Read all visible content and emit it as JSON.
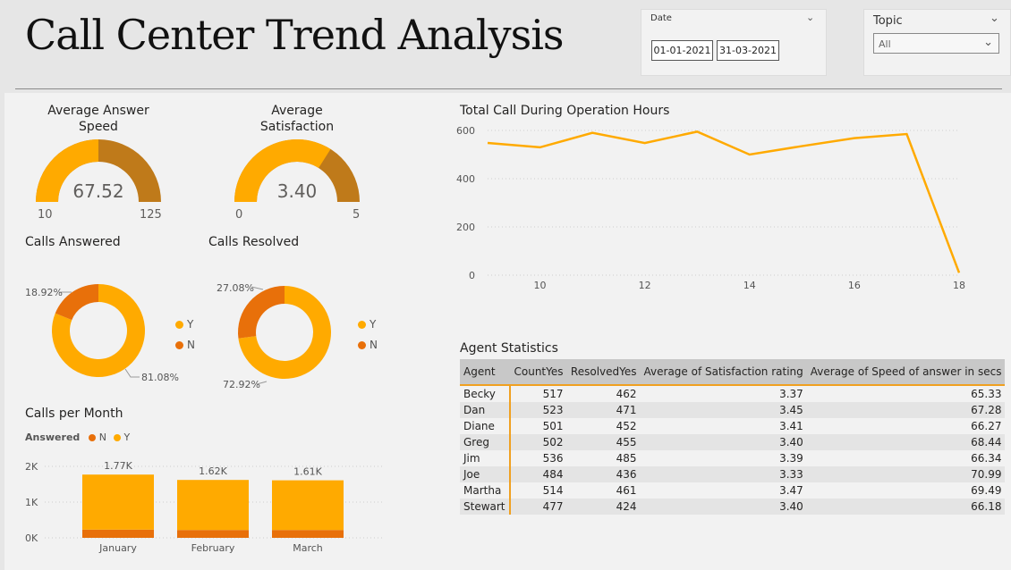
{
  "header": {
    "title": "Call Center Trend Analysis"
  },
  "date_slicer": {
    "label": "Date",
    "start": "01-01-2021",
    "end": "31-03-2021"
  },
  "topic_slicer": {
    "label": "Topic",
    "value": "All"
  },
  "colors": {
    "accent": "#ffaa00",
    "dark_orange": "#e8700a",
    "brown": "#bf7a1a"
  },
  "chart_data": [
    {
      "type": "gauge",
      "title": "Average Answer Speed",
      "value": 67.52,
      "value_label": "67.52",
      "min": 10,
      "max": 125,
      "min_label": "10",
      "max_label": "125"
    },
    {
      "type": "gauge",
      "title": "Average Satisfaction",
      "value": 3.4,
      "value_label": "3.40",
      "min": 0,
      "max": 5,
      "min_label": "0",
      "max_label": "5"
    },
    {
      "type": "pie",
      "title": "Calls Answered",
      "slices": [
        {
          "label": "Y",
          "value": 81.08,
          "text": "81.08%"
        },
        {
          "label": "N",
          "value": 18.92,
          "text": "18.92%"
        }
      ],
      "legend": [
        "Y",
        "N"
      ]
    },
    {
      "type": "pie",
      "title": "Calls Resolved",
      "slices": [
        {
          "label": "Y",
          "value": 72.92,
          "text": "72.92%"
        },
        {
          "label": "N",
          "value": 27.08,
          "text": "27.08%"
        }
      ],
      "legend": [
        "Y",
        "N"
      ]
    },
    {
      "type": "bar",
      "title": "Calls per Month",
      "legend_title": "Answered",
      "legend": [
        "N",
        "Y"
      ],
      "categories": [
        "January",
        "February",
        "March"
      ],
      "series": [
        {
          "name": "N",
          "values": [
            230,
            220,
            220
          ]
        },
        {
          "name": "Y",
          "values": [
            1540,
            1400,
            1390
          ]
        }
      ],
      "totals": [
        "1.77K",
        "1.62K",
        "1.61K"
      ],
      "y_ticks": [
        "2K",
        "1K",
        "0K"
      ],
      "ylim": [
        0,
        2000
      ]
    },
    {
      "type": "line",
      "title": "Total Call During Operation Hours",
      "x": [
        9,
        10,
        11,
        12,
        13,
        14,
        15,
        16,
        17,
        18
      ],
      "y": [
        548,
        530,
        590,
        548,
        595,
        500,
        535,
        568,
        585,
        10
      ],
      "x_ticks": [
        "10",
        "12",
        "14",
        "16",
        "18"
      ],
      "y_ticks": [
        "600",
        "400",
        "200",
        "0"
      ],
      "xlim": [
        9,
        18
      ],
      "ylim": [
        0,
        600
      ]
    },
    {
      "type": "table",
      "title": "Agent Statistics",
      "columns": [
        "Agent",
        "CountYes",
        "ResolvedYes",
        "Average of Satisfaction rating",
        "Average of Speed of answer in secs"
      ],
      "rows": [
        [
          "Becky",
          "517",
          "462",
          "3.37",
          "65.33"
        ],
        [
          "Dan",
          "523",
          "471",
          "3.45",
          "67.28"
        ],
        [
          "Diane",
          "501",
          "452",
          "3.41",
          "66.27"
        ],
        [
          "Greg",
          "502",
          "455",
          "3.40",
          "68.44"
        ],
        [
          "Jim",
          "536",
          "485",
          "3.39",
          "66.34"
        ],
        [
          "Joe",
          "484",
          "436",
          "3.33",
          "70.99"
        ],
        [
          "Martha",
          "514",
          "461",
          "3.47",
          "69.49"
        ],
        [
          "Stewart",
          "477",
          "424",
          "3.40",
          "66.18"
        ]
      ]
    }
  ]
}
